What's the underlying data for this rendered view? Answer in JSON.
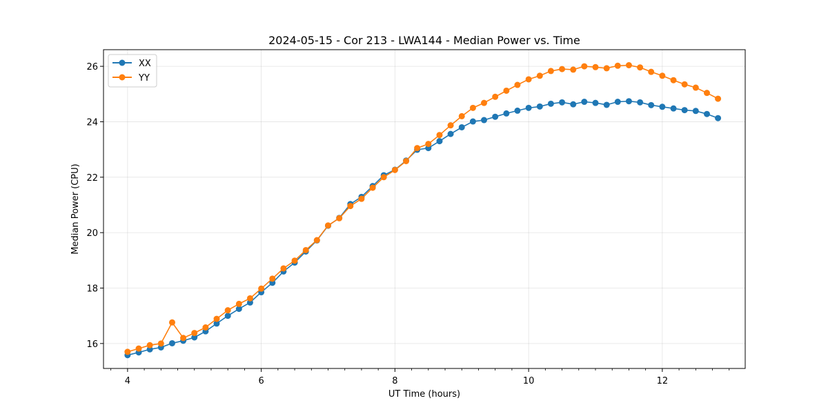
{
  "chart_data": {
    "type": "line",
    "title": "2024-05-15 - Cor 213 - LWA144 - Median Power vs. Time",
    "xlabel": "UT Time (hours)",
    "ylabel": "Median Power (CPU)",
    "xlim": [
      3.64,
      13.24
    ],
    "ylim": [
      15.1,
      26.6
    ],
    "xticks": [
      4,
      6,
      8,
      10,
      12
    ],
    "xticks_minor": [
      3.75,
      4.25,
      4.5,
      4.75,
      5,
      5.25,
      5.5,
      5.75,
      6.25,
      6.5,
      6.75,
      7,
      7.25,
      7.5,
      7.75,
      8.25,
      8.5,
      8.75,
      9,
      9.25,
      9.5,
      9.75,
      10.25,
      10.5,
      10.75,
      11,
      11.25,
      11.5,
      11.75,
      12.25,
      12.5,
      12.75,
      13
    ],
    "yticks": [
      16,
      18,
      20,
      22,
      24,
      26
    ],
    "grid": true,
    "legend_position": "top-left",
    "x": [
      4.0,
      4.167,
      4.333,
      4.5,
      4.667,
      4.833,
      5.0,
      5.167,
      5.333,
      5.5,
      5.667,
      5.833,
      6.0,
      6.167,
      6.333,
      6.5,
      6.667,
      6.833,
      7.0,
      7.167,
      7.333,
      7.5,
      7.667,
      7.833,
      8.0,
      8.167,
      8.333,
      8.5,
      8.667,
      8.833,
      9.0,
      9.167,
      9.333,
      9.5,
      9.667,
      9.833,
      10.0,
      10.167,
      10.333,
      10.5,
      10.667,
      10.833,
      11.0,
      11.167,
      11.333,
      11.5,
      11.667,
      11.833,
      12.0,
      12.167,
      12.333,
      12.5,
      12.667,
      12.833
    ],
    "series": [
      {
        "name": "XX",
        "color": "#1f77b4",
        "values": [
          15.58,
          15.68,
          15.79,
          15.86,
          16.01,
          16.1,
          16.22,
          16.44,
          16.72,
          17.0,
          17.25,
          17.48,
          17.85,
          18.19,
          18.6,
          18.92,
          19.32,
          19.72,
          20.25,
          20.53,
          21.03,
          21.29,
          21.68,
          22.07,
          22.27,
          22.6,
          22.99,
          23.05,
          23.3,
          23.56,
          23.8,
          24.01,
          24.06,
          24.18,
          24.3,
          24.4,
          24.5,
          24.55,
          24.65,
          24.7,
          24.63,
          24.72,
          24.68,
          24.61,
          24.72,
          24.74,
          24.7,
          24.6,
          24.54,
          24.48,
          24.42,
          24.39,
          24.28,
          24.13
        ]
      },
      {
        "name": "YY",
        "color": "#ff7f0e",
        "values": [
          15.7,
          15.82,
          15.94,
          16.0,
          16.76,
          16.2,
          16.38,
          16.58,
          16.89,
          17.2,
          17.43,
          17.63,
          17.98,
          18.34,
          18.71,
          18.99,
          19.37,
          19.73,
          20.26,
          20.52,
          20.96,
          21.22,
          21.62,
          22.0,
          22.26,
          22.58,
          23.05,
          23.2,
          23.52,
          23.87,
          24.2,
          24.5,
          24.68,
          24.9,
          25.12,
          25.33,
          25.53,
          25.66,
          25.83,
          25.9,
          25.88,
          26.0,
          25.97,
          25.93,
          26.02,
          26.04,
          25.96,
          25.8,
          25.66,
          25.5,
          25.35,
          25.23,
          25.04,
          24.83
        ]
      }
    ]
  }
}
